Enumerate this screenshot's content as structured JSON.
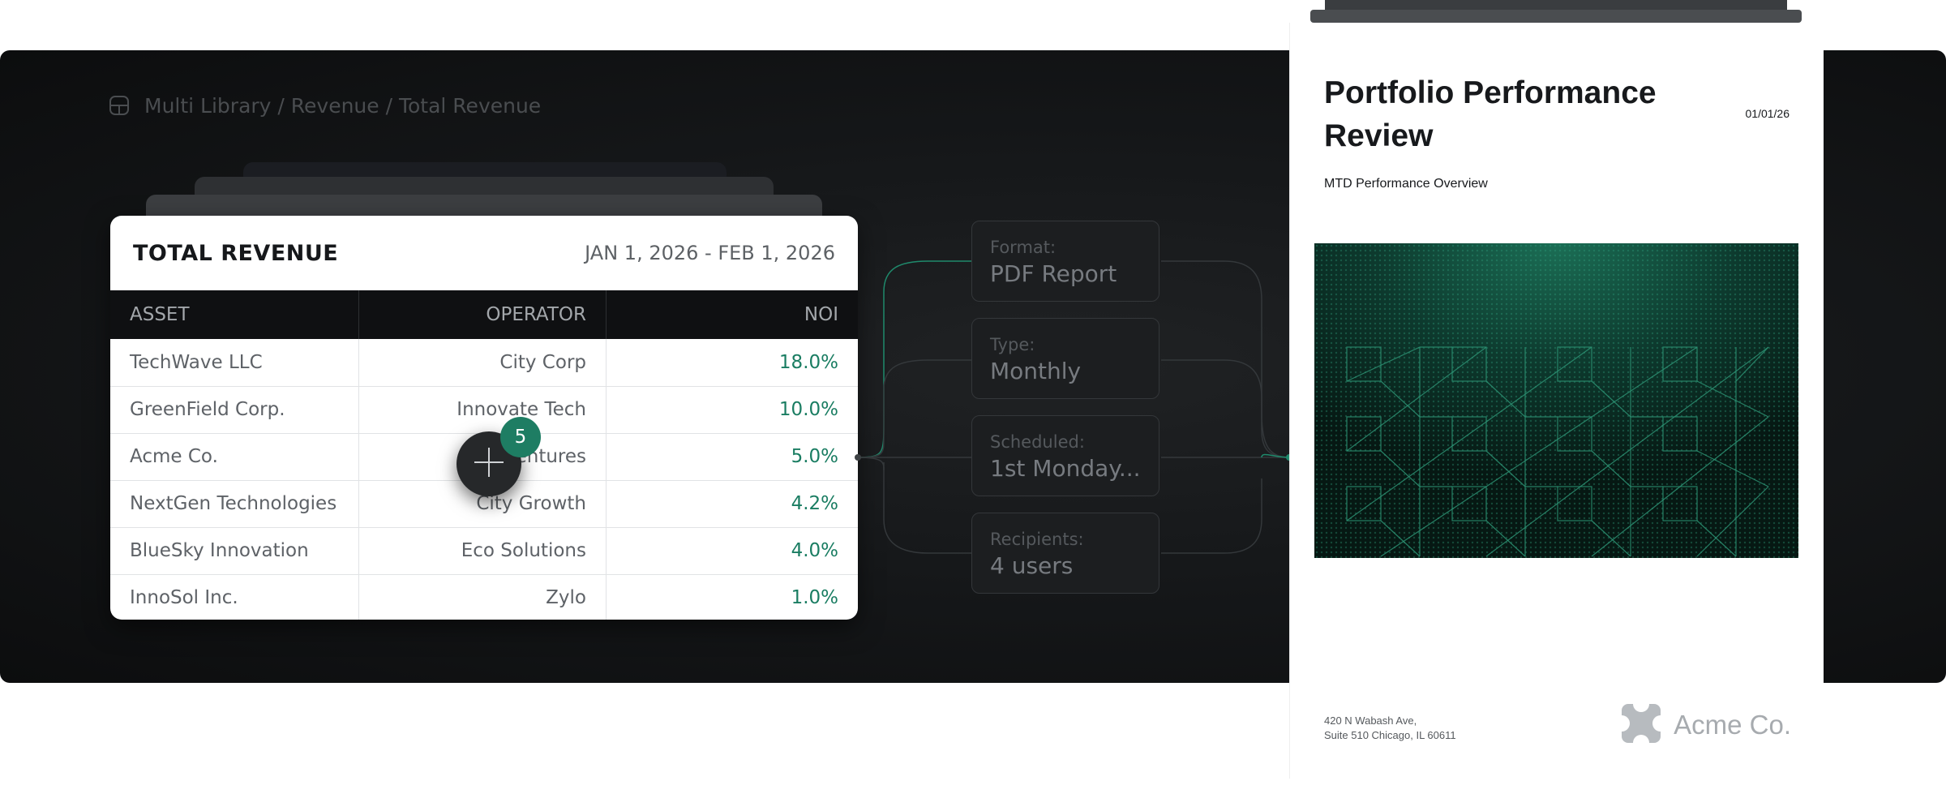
{
  "breadcrumb": {
    "icon": "library-icon",
    "text": "Multi Library / Revenue / Total  Revenue"
  },
  "revenue_card": {
    "title": "TOTAL REVENUE",
    "date_range": "JAN 1, 2026 - FEB 1, 2026",
    "columns": [
      "ASSET",
      "OPERATOR",
      "NOI"
    ],
    "rows": [
      {
        "asset": "TechWave LLC",
        "operator": "City Corp",
        "noi": "18.0%"
      },
      {
        "asset": "GreenField Corp.",
        "operator": "Innovate Tech",
        "noi": "10.0%"
      },
      {
        "asset": "Acme Co.",
        "operator": "Ventures",
        "noi": "5.0%"
      },
      {
        "asset": "NextGen Technologies",
        "operator": "City Growth",
        "noi": "4.2%"
      },
      {
        "asset": "BlueSky Innovation",
        "operator": "Eco Solutions",
        "noi": "4.0%"
      },
      {
        "asset": "InnoSol Inc.",
        "operator": "Zylo",
        "noi": "1.0%"
      }
    ]
  },
  "fab": {
    "icon": "plus-icon",
    "badge_count": "5"
  },
  "report_settings": [
    {
      "label": "Format:",
      "value": "PDF Report"
    },
    {
      "label": "Type:",
      "value": "Monthly"
    },
    {
      "label": "Scheduled:",
      "value": "1st Monday..."
    },
    {
      "label": "Recipients:",
      "value": "4 users"
    }
  ],
  "report_doc": {
    "title": "Portfolio Performance Review",
    "date": "01/01/26",
    "subtitle": "MTD Performance Overview",
    "address_line1": "420 N Wabash Ave,",
    "address_line2": "Suite 510 Chicago, IL 60611",
    "brand": "Acme Co."
  },
  "colors": {
    "accent_green": "#1e7d63",
    "dark_background": "#141618",
    "cover_green": "#0b2620"
  }
}
